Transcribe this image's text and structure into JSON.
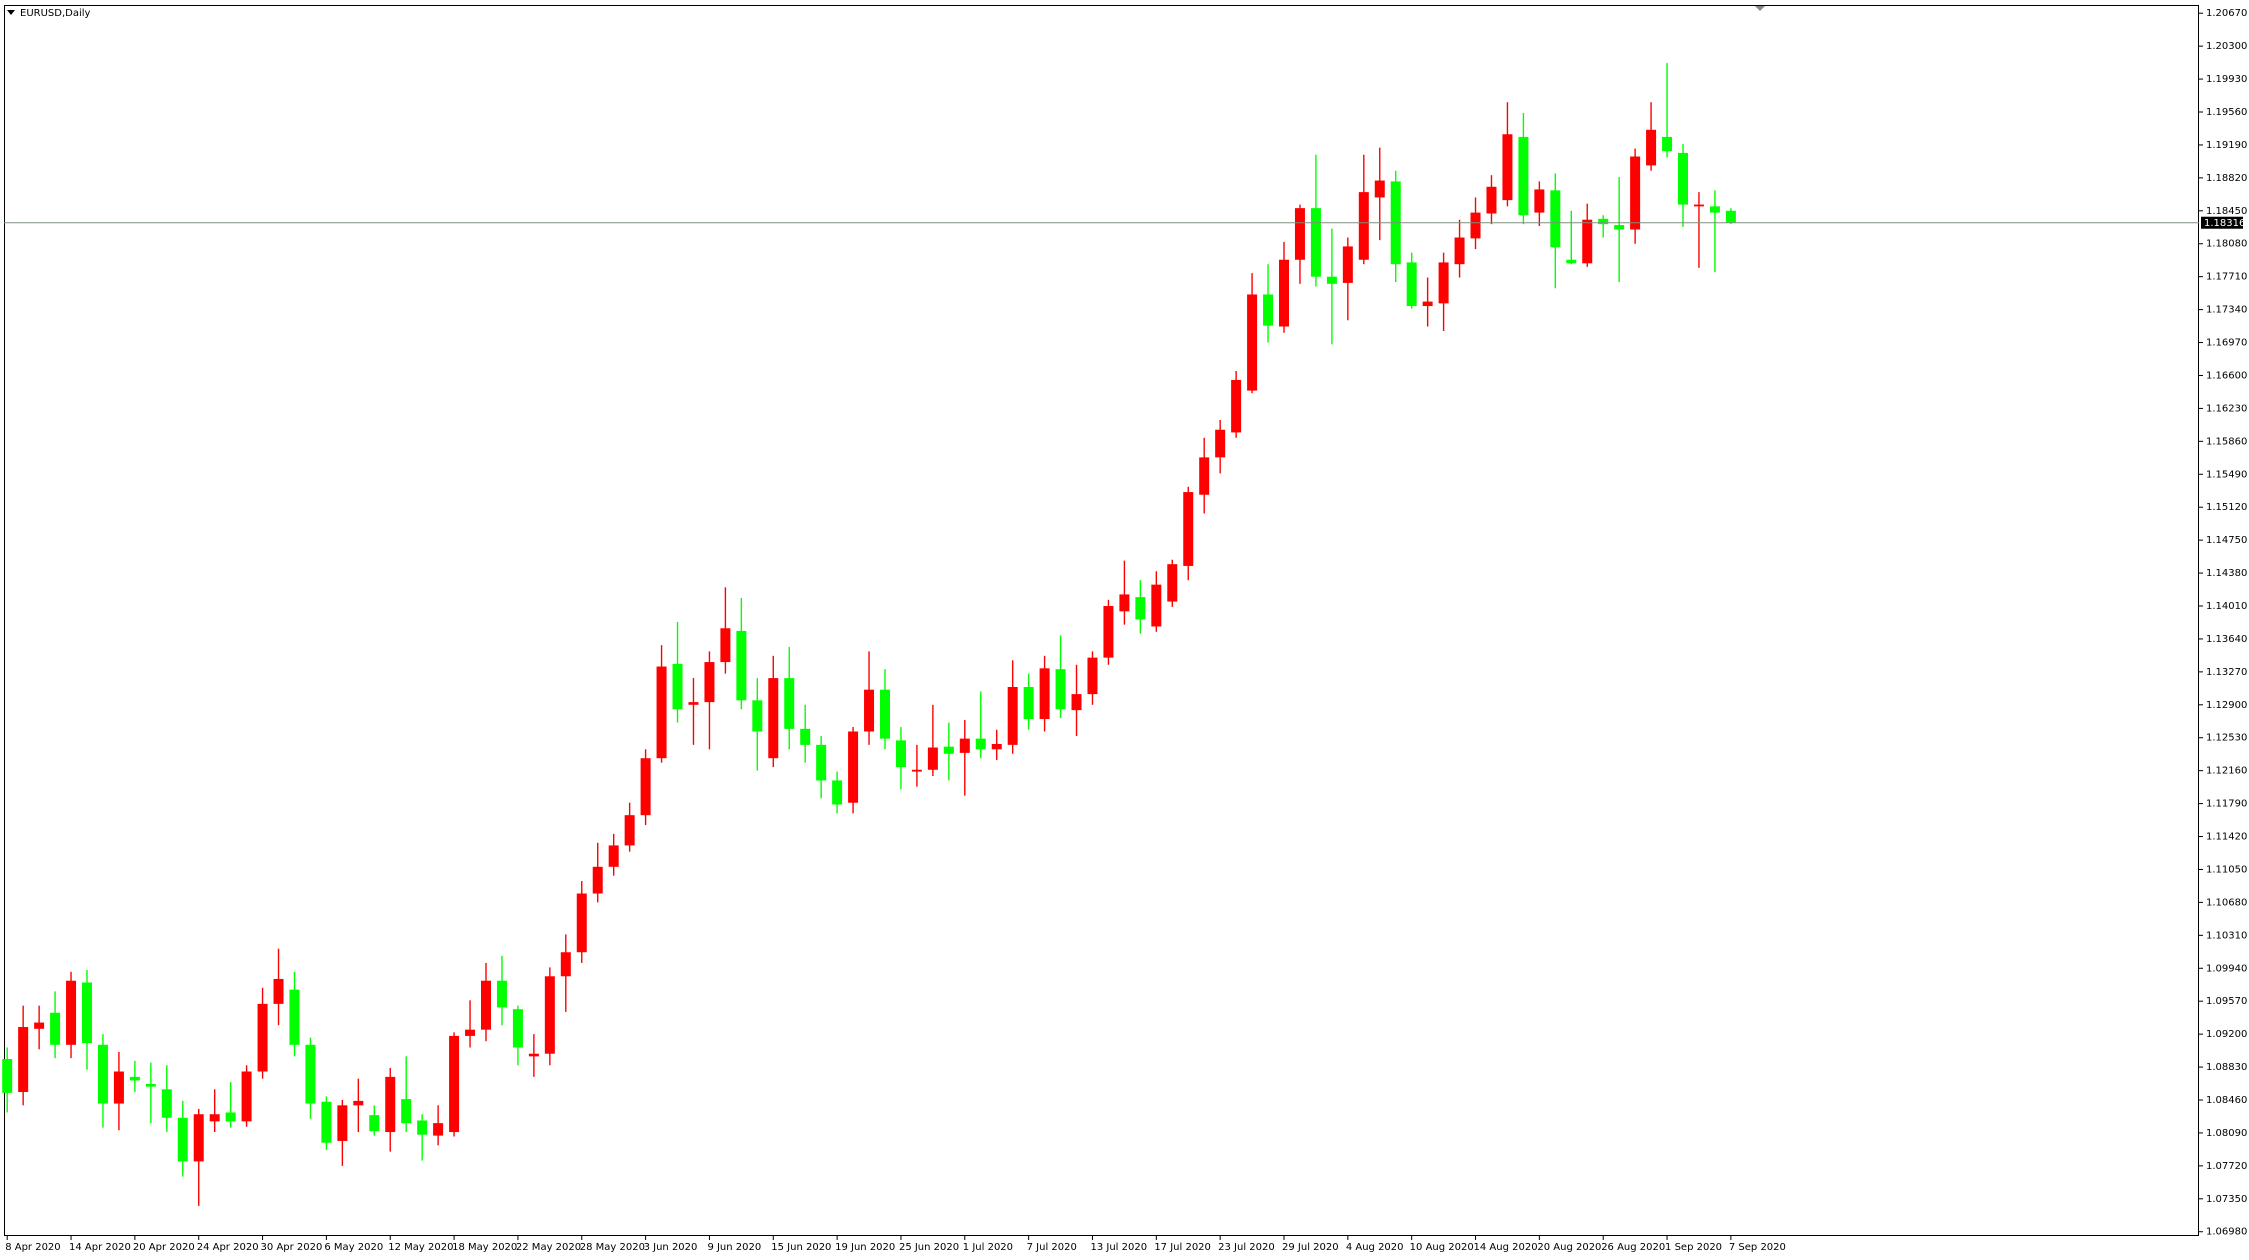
{
  "chart_data": {
    "type": "candlestick",
    "title": "EURUSD,Daily",
    "categories": [
      "8 Apr 2020",
      null,
      null,
      null,
      "14 Apr 2020",
      null,
      null,
      null,
      "20 Apr 2020",
      null,
      null,
      null,
      "24 Apr 2020",
      null,
      null,
      null,
      "30 Apr 2020",
      null,
      null,
      null,
      "6 May 2020",
      null,
      null,
      null,
      "12 May 2020",
      null,
      null,
      null,
      "18 May 2020",
      null,
      null,
      null,
      "22 May 2020",
      null,
      null,
      null,
      "28 May 2020",
      null,
      null,
      null,
      "3 Jun 2020",
      null,
      null,
      null,
      "9 Jun 2020",
      null,
      null,
      null,
      "15 Jun 2020",
      null,
      null,
      null,
      "19 Jun 2020",
      null,
      null,
      null,
      "25 Jun 2020",
      null,
      null,
      null,
      "1 Jul 2020",
      null,
      null,
      null,
      "7 Jul 2020",
      null,
      null,
      null,
      "13 Jul 2020",
      null,
      null,
      null,
      "17 Jul 2020",
      null,
      null,
      null,
      "23 Jul 2020",
      null,
      null,
      null,
      "29 Jul 2020",
      null,
      null,
      null,
      "4 Aug 2020",
      null,
      null,
      null,
      "10 Aug 2020",
      null,
      null,
      null,
      "14 Aug 2020",
      null,
      null,
      null,
      "20 Aug 2020",
      null,
      null,
      null,
      "26 Aug 2020",
      null,
      null,
      null,
      "1 Sep 2020",
      null,
      null,
      null,
      "7 Sep 2020"
    ],
    "open": [
      1.0892,
      1.0855,
      1.0926,
      1.0944,
      1.0908,
      1.0978,
      1.0908,
      1.0842,
      1.0872,
      1.0864,
      1.0858,
      1.0826,
      1.0777,
      1.0822,
      1.0832,
      1.0822,
      1.0878,
      1.0954,
      1.097,
      1.0908,
      1.0844,
      1.08,
      1.084,
      1.0829,
      1.081,
      1.0847,
      1.0823,
      1.0806,
      1.081,
      1.0918,
      1.0925,
      1.098,
      1.0948,
      1.0895,
      1.0898,
      1.0985,
      1.1012,
      1.1078,
      1.1108,
      1.1132,
      1.1166,
      1.123,
      1.1336,
      1.129,
      1.1293,
      1.1338,
      1.1373,
      1.1295,
      1.123,
      1.132,
      1.1263,
      1.1245,
      1.1205,
      1.118,
      1.126,
      1.1307,
      1.125,
      1.1215,
      1.1217,
      1.1243,
      1.1236,
      1.1252,
      1.124,
      1.1245,
      1.131,
      1.1274,
      1.133,
      1.1284,
      1.1302,
      1.1343,
      1.1395,
      1.1411,
      1.1378,
      1.1406,
      1.1446,
      1.1526,
      1.1568,
      1.1596,
      1.1643,
      1.1751,
      1.1715,
      1.179,
      1.1848,
      1.1771,
      1.1764,
      1.179,
      1.186,
      1.1878,
      1.1787,
      1.1738,
      1.1741,
      1.1785,
      1.1814,
      1.1842,
      1.1857,
      1.1928,
      1.1843,
      1.1868,
      1.179,
      1.1786,
      1.1836,
      1.1829,
      1.1824,
      1.1896,
      1.1928,
      1.191,
      1.185,
      1.185,
      1.1845
    ],
    "high": [
      1.0905,
      1.0952,
      1.0952,
      1.0968,
      1.099,
      1.0992,
      1.092,
      1.09,
      1.089,
      1.0888,
      1.0885,
      1.0845,
      1.0836,
      1.0858,
      1.0866,
      1.0885,
      1.0972,
      1.1016,
      1.099,
      1.0916,
      1.085,
      1.0846,
      1.087,
      1.084,
      1.0882,
      1.0895,
      1.083,
      1.084,
      1.0922,
      1.0958,
      1.1,
      1.1008,
      1.0952,
      1.092,
      1.0995,
      1.1032,
      1.1092,
      1.1135,
      1.1145,
      1.118,
      1.124,
      1.1357,
      1.1383,
      1.132,
      1.135,
      1.1422,
      1.141,
      1.132,
      1.1345,
      1.1355,
      1.129,
      1.1255,
      1.1215,
      1.1265,
      1.135,
      1.133,
      1.1265,
      1.1245,
      1.129,
      1.127,
      1.1273,
      1.1305,
      1.1262,
      1.134,
      1.1325,
      1.1345,
      1.1368,
      1.1335,
      1.135,
      1.1408,
      1.1452,
      1.143,
      1.144,
      1.1453,
      1.1535,
      1.159,
      1.161,
      1.1665,
      1.1775,
      1.1785,
      1.181,
      1.1852,
      1.1908,
      1.1825,
      1.1815,
      1.1908,
      1.1916,
      1.189,
      1.1798,
      1.177,
      1.1798,
      1.1835,
      1.186,
      1.1885,
      1.1967,
      1.1955,
      1.1878,
      1.1887,
      1.1845,
      1.1853,
      1.184,
      1.1883,
      1.1915,
      1.1967,
      1.2011,
      1.192,
      1.1866,
      1.1868,
      1.1848
    ],
    "low": [
      1.0832,
      1.084,
      1.0903,
      1.0893,
      1.0893,
      1.088,
      1.0815,
      1.0812,
      1.0855,
      1.082,
      1.081,
      1.076,
      1.0727,
      1.081,
      1.0815,
      1.0816,
      1.087,
      1.093,
      1.0895,
      1.0825,
      1.079,
      1.0772,
      1.081,
      1.0806,
      1.0788,
      1.081,
      1.0778,
      1.0795,
      1.0805,
      1.0905,
      1.0912,
      1.093,
      1.0885,
      1.0872,
      1.0885,
      1.0945,
      1.1,
      1.1068,
      1.1098,
      1.1125,
      1.1155,
      1.1225,
      1.127,
      1.1245,
      1.124,
      1.1325,
      1.1285,
      1.1216,
      1.122,
      1.124,
      1.1225,
      1.1185,
      1.1168,
      1.1168,
      1.1245,
      1.124,
      1.1195,
      1.1198,
      1.121,
      1.1205,
      1.1188,
      1.123,
      1.1228,
      1.1235,
      1.1262,
      1.126,
      1.1275,
      1.1255,
      1.129,
      1.1335,
      1.138,
      1.137,
      1.1372,
      1.14,
      1.143,
      1.1505,
      1.155,
      1.159,
      1.164,
      1.1697,
      1.1708,
      1.1763,
      1.176,
      1.1695,
      1.1722,
      1.1785,
      1.1812,
      1.1765,
      1.1735,
      1.1715,
      1.171,
      1.177,
      1.1802,
      1.183,
      1.185,
      1.183,
      1.1828,
      1.1758,
      1.1785,
      1.1782,
      1.1815,
      1.1765,
      1.1808,
      1.189,
      1.1905,
      1.1827,
      1.1781,
      1.1776,
      1.183
    ],
    "close": [
      1.0854,
      1.0928,
      1.0933,
      1.0908,
      1.098,
      1.091,
      1.0842,
      1.0878,
      1.0868,
      1.0861,
      1.0826,
      1.0777,
      1.083,
      1.083,
      1.0822,
      1.0878,
      1.0954,
      1.0982,
      1.0908,
      1.0842,
      1.0798,
      1.084,
      1.0845,
      1.0811,
      1.0872,
      1.082,
      1.0807,
      1.082,
      1.0918,
      1.0925,
      1.098,
      1.095,
      1.0905,
      1.0898,
      1.0985,
      1.1012,
      1.1078,
      1.1108,
      1.1132,
      1.1166,
      1.123,
      1.1333,
      1.1285,
      1.1293,
      1.1338,
      1.1376,
      1.1295,
      1.126,
      1.132,
      1.1263,
      1.1245,
      1.1205,
      1.1178,
      1.126,
      1.1307,
      1.1252,
      1.122,
      1.1217,
      1.1242,
      1.1235,
      1.1252,
      1.124,
      1.1246,
      1.131,
      1.1274,
      1.1331,
      1.1285,
      1.1302,
      1.1343,
      1.1401,
      1.1414,
      1.1386,
      1.1425,
      1.1448,
      1.1529,
      1.1568,
      1.1599,
      1.1655,
      1.1751,
      1.1716,
      1.179,
      1.1848,
      1.1771,
      1.1763,
      1.1805,
      1.1866,
      1.1879,
      1.1785,
      1.1738,
      1.1743,
      1.1787,
      1.1815,
      1.1843,
      1.1872,
      1.1931,
      1.184,
      1.1869,
      1.1804,
      1.1786,
      1.1835,
      1.183,
      1.1824,
      1.1906,
      1.1936,
      1.1912,
      1.1852,
      1.1852,
      1.1843,
      1.18316
    ],
    "up_color": "#ff0000",
    "down_color": "#00ff00",
    "current_price": 1.18316,
    "ylim": [
      1.06932,
      1.20751
    ],
    "yticks": [
      {
        "value": 1.0698,
        "label": "1.06980"
      },
      {
        "value": 1.0735,
        "label": "1.07350"
      },
      {
        "value": 1.0772,
        "label": "1.07720"
      },
      {
        "value": 1.0809,
        "label": "1.08090"
      },
      {
        "value": 1.0846,
        "label": "1.08460"
      },
      {
        "value": 1.0883,
        "label": "1.08830"
      },
      {
        "value": 1.092,
        "label": "1.09200"
      },
      {
        "value": 1.0957,
        "label": "1.09570"
      },
      {
        "value": 1.0994,
        "label": "1.09940"
      },
      {
        "value": 1.1031,
        "label": "1.10310"
      },
      {
        "value": 1.1068,
        "label": "1.10680"
      },
      {
        "value": 1.1105,
        "label": "1.11050"
      },
      {
        "value": 1.1142,
        "label": "1.11420"
      },
      {
        "value": 1.1179,
        "label": "1.11790"
      },
      {
        "value": 1.1216,
        "label": "1.12160"
      },
      {
        "value": 1.1253,
        "label": "1.12530"
      },
      {
        "value": 1.129,
        "label": "1.12900"
      },
      {
        "value": 1.1327,
        "label": "1.13270"
      },
      {
        "value": 1.1364,
        "label": "1.13640"
      },
      {
        "value": 1.1401,
        "label": "1.14010"
      },
      {
        "value": 1.1438,
        "label": "1.14380"
      },
      {
        "value": 1.1475,
        "label": "1.14750"
      },
      {
        "value": 1.1512,
        "label": "1.15120"
      },
      {
        "value": 1.1549,
        "label": "1.15490"
      },
      {
        "value": 1.1586,
        "label": "1.15860"
      },
      {
        "value": 1.1623,
        "label": "1.16230"
      },
      {
        "value": 1.166,
        "label": "1.16600"
      },
      {
        "value": 1.1697,
        "label": "1.16970"
      },
      {
        "value": 1.1734,
        "label": "1.17340"
      },
      {
        "value": 1.1771,
        "label": "1.17710"
      },
      {
        "value": 1.1808,
        "label": "1.18080"
      },
      {
        "value": 1.1845,
        "label": "1.18450"
      },
      {
        "value": 1.1882,
        "label": "1.18820"
      },
      {
        "value": 1.1919,
        "label": "1.19190"
      },
      {
        "value": 1.1956,
        "label": "1.19560"
      },
      {
        "value": 1.1993,
        "label": "1.19930"
      },
      {
        "value": 1.203,
        "label": "1.20300"
      },
      {
        "value": 1.2067,
        "label": "1.20670"
      }
    ],
    "grid": false
  }
}
